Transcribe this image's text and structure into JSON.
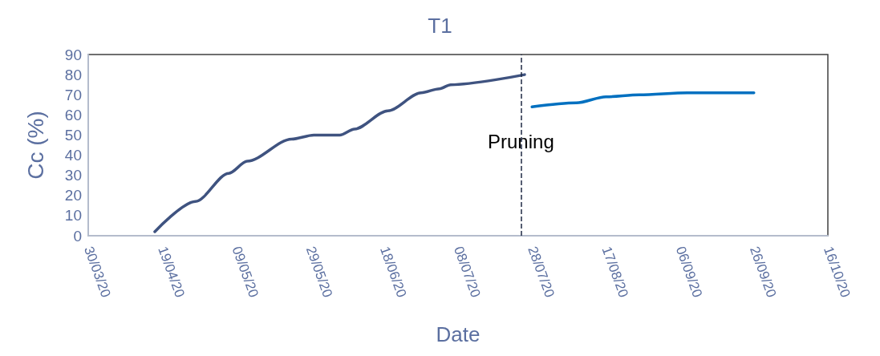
{
  "chart_data": {
    "type": "line",
    "title": "T1",
    "xlabel": "Date",
    "ylabel": "Cc (%)",
    "xlim": [
      "2020-03-30",
      "2020-10-16"
    ],
    "xticks": [
      {
        "value": "2020-03-30",
        "label": "30/03/20"
      },
      {
        "value": "2020-04-19",
        "label": "19/04/20"
      },
      {
        "value": "2020-05-09",
        "label": "09/05/20"
      },
      {
        "value": "2020-05-29",
        "label": "29/05/20"
      },
      {
        "value": "2020-06-18",
        "label": "18/06/20"
      },
      {
        "value": "2020-07-08",
        "label": "08/07/20"
      },
      {
        "value": "2020-07-28",
        "label": "28/07/20"
      },
      {
        "value": "2020-08-17",
        "label": "17/08/20"
      },
      {
        "value": "2020-09-06",
        "label": "06/09/20"
      },
      {
        "value": "2020-09-26",
        "label": "26/09/20"
      },
      {
        "value": "2020-10-16",
        "label": "16/10/20"
      }
    ],
    "ylim": [
      0,
      90
    ],
    "yticks": [
      0,
      10,
      20,
      30,
      40,
      50,
      60,
      70,
      80,
      90
    ],
    "series": [
      {
        "color": "#3f5380",
        "x": [
          "2020-04-17",
          "2020-04-28",
          "2020-05-07",
          "2020-05-12",
          "2020-05-24",
          "2020-05-30",
          "2020-06-06",
          "2020-06-10",
          "2020-06-19",
          "2020-06-28",
          "2020-07-03",
          "2020-07-06",
          "2020-07-26"
        ],
        "values": [
          2,
          17,
          31,
          37,
          48,
          50,
          50,
          53,
          62,
          71,
          73,
          75,
          80
        ]
      },
      {
        "color": "#0070c0",
        "x": [
          "2020-07-28",
          "2020-08-09",
          "2020-08-17",
          "2020-08-26",
          "2020-09-08",
          "2020-09-26"
        ],
        "values": [
          64,
          66,
          69,
          70,
          71,
          71
        ]
      }
    ],
    "ref_lines": [
      {
        "axis": "x",
        "value": "2020-07-25",
        "label": "Pruning",
        "color": "#1f2a44",
        "line_style": "dashed"
      }
    ],
    "grid": false,
    "marker": "none",
    "line_style": "solid"
  }
}
